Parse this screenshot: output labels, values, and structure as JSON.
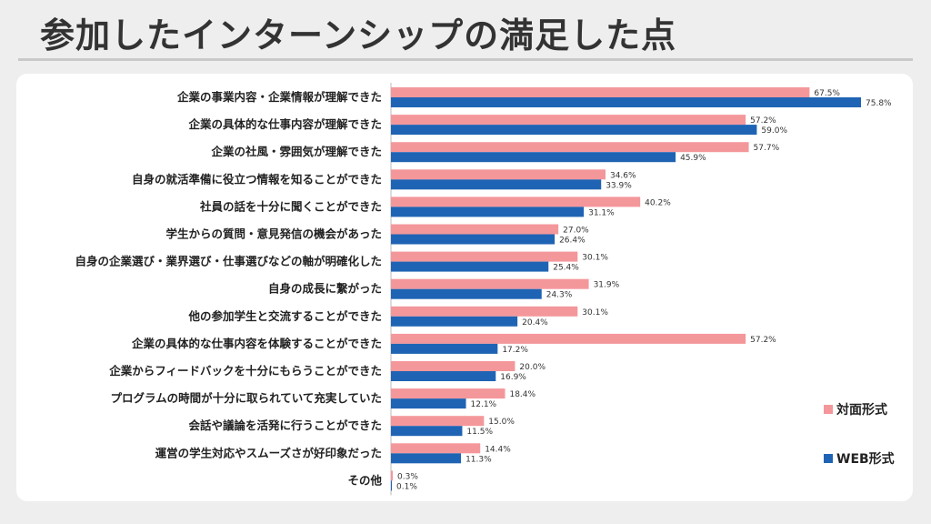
{
  "title": "参加したインターンシップの満足した点",
  "chart_data": {
    "type": "bar",
    "orientation": "horizontal",
    "categories": [
      "企業の事業内容・企業情報が理解できた",
      "企業の具体的な仕事内容が理解できた",
      "企業の社風・雰囲気が理解できた",
      "自身の就活準備に役立つ情報を知ることができた",
      "社員の話を十分に聞くことができた",
      "学生からの質問・意見発信の機会があった",
      "自身の企業選び・業界選び・仕事選びなどの軸が明確化した",
      "自身の成長に繋がった",
      "他の参加学生と交流することができた",
      "企業の具体的な仕事内容を体験することができた",
      "企業からフィードバックを十分にもらうことができた",
      "プログラムの時間が十分に取られていて充実していた",
      "会話や議論を活発に行うことができた",
      "運営の学生対応やスムーズさが好印象だった",
      "その他"
    ],
    "series": [
      {
        "name": "対面形式",
        "color": "#f4979b",
        "values": [
          67.5,
          57.2,
          57.7,
          34.6,
          40.2,
          27.0,
          30.1,
          31.9,
          30.1,
          57.2,
          20.0,
          18.4,
          15.0,
          14.4,
          0.3
        ],
        "labels": [
          "67.5%",
          "57.2%",
          "57.7%",
          "34.6%",
          "40.2%",
          "27.0%",
          "30.1%",
          "31.9%",
          "30.1%",
          "57.2%",
          "20.0%",
          "18.4%",
          "15.0%",
          "14.4%",
          "0.3%"
        ]
      },
      {
        "name": "WEB形式",
        "color": "#1f64b4",
        "values": [
          75.8,
          59.0,
          45.9,
          33.9,
          31.1,
          26.4,
          25.4,
          24.3,
          20.4,
          17.2,
          16.9,
          12.1,
          11.5,
          11.3,
          0.1
        ],
        "labels": [
          "75.8%",
          "59.0%",
          "45.9%",
          "33.9%",
          "31.1%",
          "26.4%",
          "25.4%",
          "24.3%",
          "20.4%",
          "17.2%",
          "16.9%",
          "12.1%",
          "11.5%",
          "11.3%",
          "0.1%"
        ]
      }
    ],
    "xlim": [
      0,
      80
    ],
    "grid": false,
    "legend_position": "bottom-right"
  },
  "legend": {
    "items": [
      {
        "label": "対面形式",
        "color": "#f4979b"
      },
      {
        "label": "WEB形式",
        "color": "#1f64b4"
      }
    ]
  }
}
